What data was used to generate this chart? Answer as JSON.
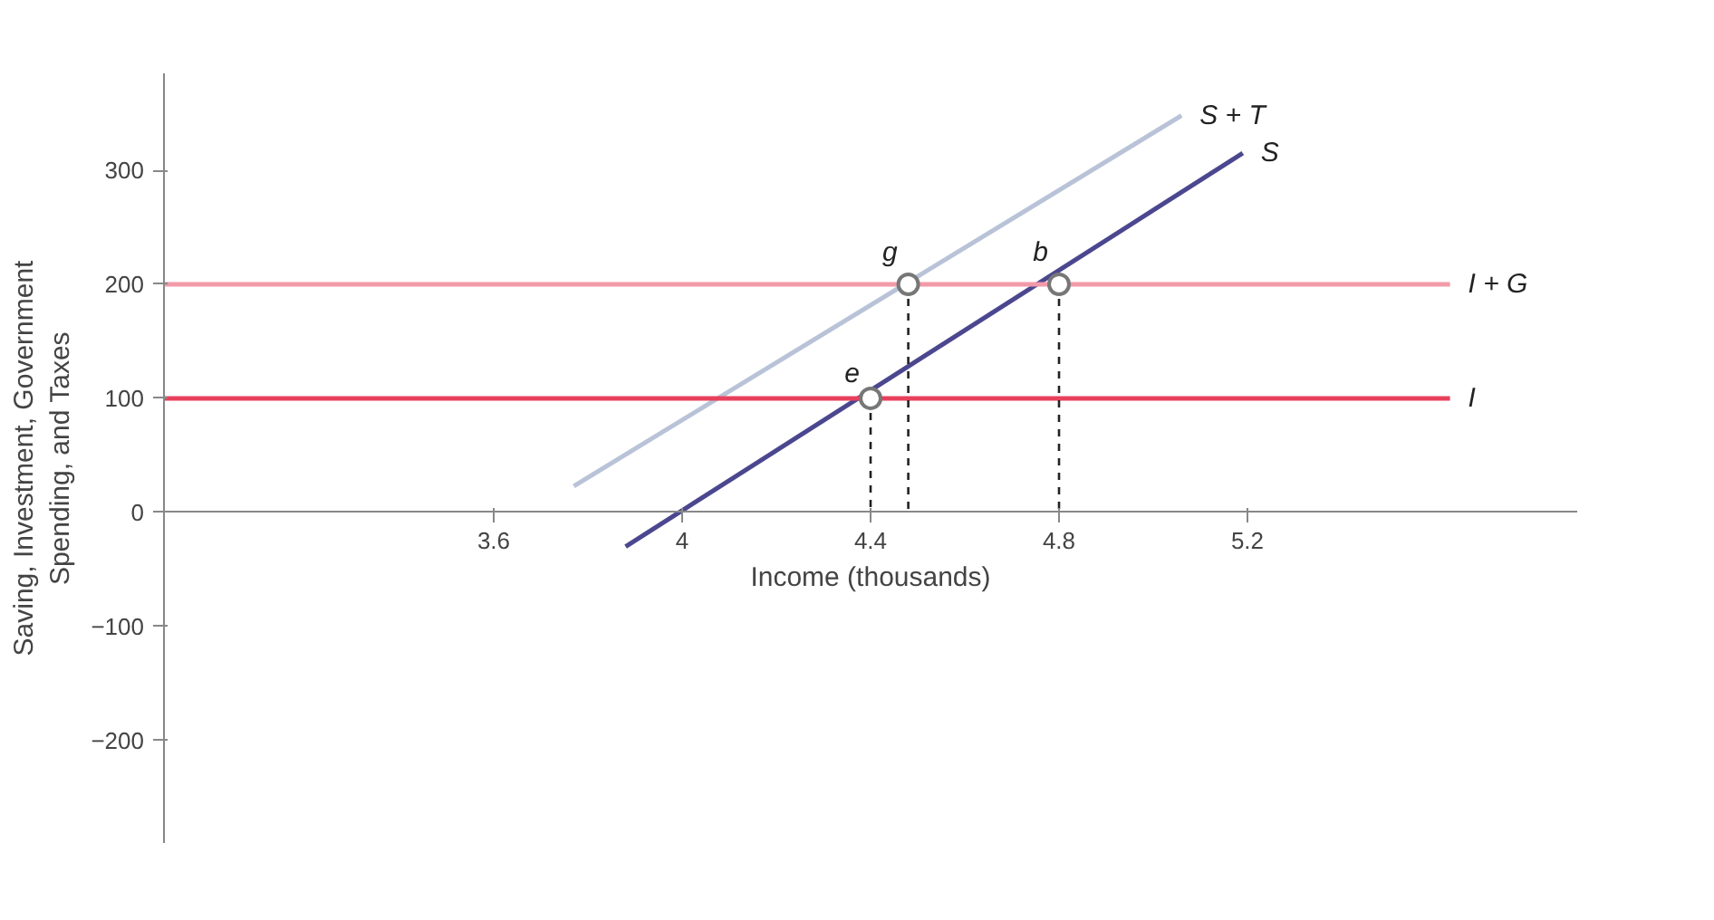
{
  "chart_data": {
    "type": "line",
    "xlabel": "Income (thousands)",
    "ylabel": "Saving, Investment, Government Spending, and Taxes",
    "xlim": [
      2.9,
      5.9
    ],
    "ylim": [
      -290,
      385
    ],
    "xticks": [
      3.6,
      4,
      4.4,
      4.8,
      5.2
    ],
    "yticks": [
      -200,
      -100,
      0,
      100,
      200,
      300
    ],
    "grid": false,
    "marker": "none",
    "line_style": "solid",
    "series": [
      {
        "name": "S + T",
        "color": "#b9c3d8",
        "x": [
          3.77,
          5.06
        ],
        "values": [
          23,
          348
        ]
      },
      {
        "name": "S",
        "color": "#4b478f",
        "x": [
          3.88,
          5.19
        ],
        "values": [
          -30,
          315
        ]
      },
      {
        "name": "I + G",
        "color": "#f29aa8",
        "x": [
          2.9,
          5.63
        ],
        "values": [
          200,
          200
        ]
      },
      {
        "name": "I",
        "color": "#e8405c",
        "x": [
          2.9,
          5.63
        ],
        "values": [
          100,
          100
        ]
      },
      {
        "type": "line",
        "color": "#222222",
        "line_style": "dashed",
        "x": [
          4.4,
          4.4
        ],
        "values": [
          100,
          0
        ]
      },
      {
        "type": "line",
        "color": "#222222",
        "line_style": "dashed",
        "x": [
          4.48,
          4.48
        ],
        "values": [
          200,
          0
        ]
      },
      {
        "type": "line",
        "color": "#222222",
        "line_style": "dashed",
        "x": [
          4.8,
          4.8
        ],
        "values": [
          200,
          0
        ]
      },
      {
        "type": "scatter",
        "marker": "circle",
        "color": "#777777",
        "x": [
          4.4,
          4.48,
          4.8
        ],
        "values": [
          100,
          200,
          200
        ]
      }
    ],
    "annotations": [
      {
        "text": "e",
        "x": 4.4,
        "y": 100
      },
      {
        "text": "g",
        "x": 4.48,
        "y": 200
      },
      {
        "text": "b",
        "x": 4.8,
        "y": 200
      }
    ]
  }
}
